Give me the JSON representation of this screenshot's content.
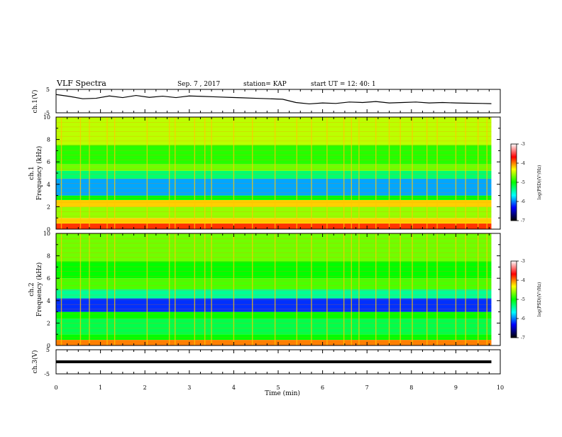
{
  "header": {
    "title": "VLF Spectra",
    "date": "Sep. 7 , 2017",
    "station": "station= KAP",
    "start": "start  UT =  12: 40: 1"
  },
  "panels": {
    "ch1": {
      "ylabel": "ch.1(V)"
    },
    "spec1": {
      "ylabel_ch": "ch.1",
      "ylabel": "Frequency (kHz)"
    },
    "spec2": {
      "ylabel_ch": "ch.2",
      "ylabel": "Frequency (kHz)"
    },
    "ch3": {
      "ylabel": "ch.3(V)"
    }
  },
  "colorbar": {
    "label": "log(PSD)(V²/Hz)",
    "ticks": [
      "-3",
      "-4",
      "-5",
      "-6",
      "-7"
    ],
    "colors": [
      "#ffffff",
      "#ff0000",
      "#ffff00",
      "#00ff00",
      "#00ffff",
      "#0000ff",
      "#000000"
    ]
  },
  "chart_data": [
    {
      "type": "line",
      "name": "ch1-waveform",
      "title": "VLF Spectra",
      "xlabel": "Time (min)",
      "ylabel": "ch.1(V)",
      "xlim": [
        0,
        10
      ],
      "ylim": [
        -5,
        5
      ],
      "y_ticks": [
        "5",
        "-5"
      ],
      "x_extent": [
        0,
        9.8
      ],
      "x": [
        0,
        0.3,
        0.6,
        0.9,
        1.2,
        1.5,
        1.8,
        2.1,
        2.4,
        2.7,
        3.0,
        3.3,
        3.6,
        3.9,
        4.2,
        4.5,
        4.8,
        5.1,
        5.4,
        5.7,
        6.0,
        6.3,
        6.6,
        6.9,
        7.2,
        7.5,
        7.8,
        8.1,
        8.4,
        8.7,
        9.0,
        9.3,
        9.6,
        9.8
      ],
      "values": [
        2.8,
        2.0,
        1.0,
        1.2,
        2.2,
        1.5,
        2.4,
        1.6,
        2.1,
        1.5,
        2.2,
        2.0,
        1.8,
        1.6,
        1.4,
        1.2,
        1.0,
        0.8,
        -0.6,
        -1.2,
        -0.8,
        -1.0,
        -0.4,
        -0.6,
        -0.2,
        -0.8,
        -0.6,
        -0.4,
        -0.8,
        -0.6,
        -0.8,
        -0.9,
        -1.0,
        -1.1
      ]
    },
    {
      "type": "heatmap",
      "name": "ch1-spectrogram",
      "xlabel": "Time (min)",
      "ylabel": "Frequency (kHz)",
      "xlim": [
        0,
        10
      ],
      "ylim": [
        0,
        10
      ],
      "x_extent": [
        0,
        9.8
      ],
      "y_ticks": [
        "0",
        "2",
        "4",
        "6",
        "8",
        "10"
      ],
      "zlim": [
        -7,
        -3
      ],
      "bands": [
        {
          "from": 0,
          "to": 0.5,
          "level": -3.8
        },
        {
          "from": 0.5,
          "to": 1.0,
          "level": -4.2
        },
        {
          "from": 1.0,
          "to": 2.0,
          "level": -4.6
        },
        {
          "from": 2.0,
          "to": 2.6,
          "level": -4.2
        },
        {
          "from": 2.6,
          "to": 3.0,
          "level": -5.0
        },
        {
          "from": 3.0,
          "to": 4.5,
          "level": -5.9
        },
        {
          "from": 4.5,
          "to": 5.2,
          "level": -5.3
        },
        {
          "from": 5.2,
          "to": 5.8,
          "level": -4.7
        },
        {
          "from": 5.8,
          "to": 7.5,
          "level": -4.9
        },
        {
          "from": 7.5,
          "to": 10.0,
          "level": -4.5
        }
      ],
      "bursts_min": [
        0.12,
        0.55,
        0.75,
        1.15,
        1.32,
        2.05,
        2.55,
        2.68,
        3.12,
        3.35,
        3.5,
        4.0,
        4.42,
        4.93,
        5.42,
        5.75,
        6.1,
        6.48,
        6.65,
        6.82,
        7.2,
        7.5,
        7.75,
        8.02,
        8.35,
        8.58,
        9.0,
        9.22,
        9.5,
        9.7
      ]
    },
    {
      "type": "heatmap",
      "name": "ch2-spectrogram",
      "xlabel": "Time (min)",
      "ylabel": "Frequency (kHz)",
      "xlim": [
        0,
        10
      ],
      "ylim": [
        0,
        10
      ],
      "x_extent": [
        0,
        9.8
      ],
      "y_ticks": [
        "0",
        "2",
        "4",
        "6",
        "8",
        "10"
      ],
      "zlim": [
        -7,
        -3
      ],
      "bands": [
        {
          "from": 0,
          "to": 0.5,
          "level": -4.0
        },
        {
          "from": 0.5,
          "to": 1.0,
          "level": -5.0
        },
        {
          "from": 1.0,
          "to": 2.4,
          "level": -5.2
        },
        {
          "from": 2.4,
          "to": 3.0,
          "level": -5.0
        },
        {
          "from": 3.0,
          "to": 4.2,
          "level": -6.2
        },
        {
          "from": 4.2,
          "to": 5.0,
          "level": -5.4
        },
        {
          "from": 5.0,
          "to": 6.0,
          "level": -4.8
        },
        {
          "from": 6.0,
          "to": 7.5,
          "level": -5.0
        },
        {
          "from": 7.5,
          "to": 10.0,
          "level": -4.7
        }
      ],
      "bursts_min": [
        0.12,
        0.55,
        0.75,
        1.15,
        1.32,
        2.05,
        2.55,
        2.68,
        3.12,
        3.35,
        3.5,
        4.0,
        4.42,
        4.93,
        5.42,
        5.75,
        6.1,
        6.48,
        6.65,
        6.82,
        7.2,
        7.5,
        7.75,
        8.02,
        8.35,
        8.58,
        9.0,
        9.22,
        9.5,
        9.7
      ]
    },
    {
      "type": "line",
      "name": "ch3-waveform",
      "xlabel": "Time (min)",
      "ylabel": "ch.3(V)",
      "xlim": [
        0,
        10
      ],
      "ylim": [
        -5,
        5
      ],
      "y_ticks": [
        "5",
        "-5"
      ],
      "x_ticks": [
        "0",
        "1",
        "2",
        "3",
        "4",
        "5",
        "6",
        "7",
        "8",
        "9",
        "10"
      ],
      "x": [
        0,
        9.8
      ],
      "values": [
        0,
        0
      ]
    }
  ]
}
